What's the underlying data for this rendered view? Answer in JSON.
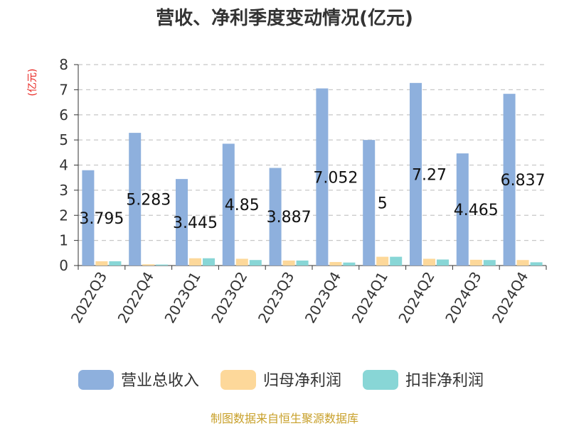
{
  "chart_data": {
    "type": "bar",
    "title": "营收、净利季度变动情况(亿元)",
    "ylabel": "(亿元)",
    "xlabel": "",
    "ylim": [
      0,
      8
    ],
    "yticks": [
      "0",
      "1",
      "2",
      "3",
      "4",
      "5",
      "6",
      "7",
      "8"
    ],
    "grid": true,
    "legend_position": "bottom",
    "categories": [
      "2022Q3",
      "2022Q4",
      "2023Q1",
      "2023Q2",
      "2023Q3",
      "2023Q4",
      "2024Q1",
      "2024Q2",
      "2024Q3",
      "2024Q4"
    ],
    "series": [
      {
        "name": "营业总收入",
        "color": "#8eb0dd",
        "values": [
          3.795,
          5.283,
          3.445,
          4.85,
          3.887,
          7.052,
          5,
          7.27,
          4.465,
          6.837
        ],
        "data_labels": [
          "3.795",
          "5.283",
          "3.445",
          "4.85",
          "3.887",
          "7.052",
          "5",
          "7.27",
          "4.465",
          "6.837"
        ]
      },
      {
        "name": "归母净利润",
        "color": "#fdd89a",
        "values": [
          0.17,
          0.05,
          0.29,
          0.27,
          0.2,
          0.14,
          0.35,
          0.27,
          0.23,
          0.22
        ]
      },
      {
        "name": "扣非净利润",
        "color": "#88d6d6",
        "values": [
          0.17,
          0.04,
          0.29,
          0.22,
          0.2,
          0.12,
          0.35,
          0.24,
          0.22,
          0.13
        ]
      }
    ]
  },
  "colors": {
    "title": "#333333",
    "unit": "#e8231e",
    "source": "#c8a02a",
    "grid": "#c8c8c8",
    "axis": "#333333"
  },
  "footer": {
    "source": "制图数据来自恒生聚源数据库"
  }
}
